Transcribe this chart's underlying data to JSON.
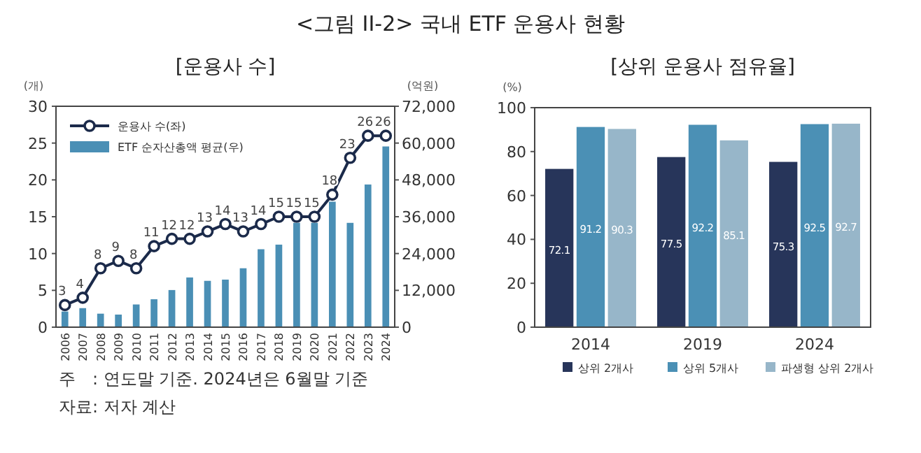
{
  "chart_data": [
    {
      "type": "other",
      "title": "<그림 II-2> 국내 ETF 운용사 현황",
      "annotations": [
        "주　: 연도말 기준. 2024년은 6월말 기준",
        "자료: 저자 계산"
      ]
    },
    {
      "type": "bar",
      "title": "[운용사 수]",
      "ylabel": "(개)",
      "y2label": "(억원)",
      "legend": "top left",
      "categories": [
        "2006",
        "2007",
        "2008",
        "2009",
        "2010",
        "2011",
        "2012",
        "2013",
        "2014",
        "2015",
        "2016",
        "2017",
        "2018",
        "2019",
        "2020",
        "2021",
        "2022",
        "2023",
        "2024"
      ],
      "ylim": [
        0,
        30
      ],
      "yticks": [
        0,
        5,
        10,
        15,
        20,
        25,
        30
      ],
      "y2lim": [
        0,
        72000
      ],
      "y2ticks": [
        0,
        {
          "value": 12000,
          "label": "12,000"
        },
        {
          "value": 24000,
          "label": "24,000"
        },
        {
          "value": 36000,
          "label": "36,000"
        },
        {
          "value": 48000,
          "label": "48,000"
        },
        {
          "value": 60000,
          "label": "60,000"
        },
        {
          "value": 72000,
          "label": "72,000"
        }
      ],
      "series": [
        {
          "name": "운용사 수(좌)",
          "type": "line",
          "marker": "circle",
          "color": "#1b2a4a",
          "values": [
            3,
            4,
            8,
            9,
            8,
            11,
            12,
            12,
            13,
            14,
            13,
            14,
            15,
            15,
            15,
            18,
            23,
            26,
            26
          ],
          "value_labels": [
            "3",
            "4",
            "8",
            "9",
            "8",
            "11",
            "12",
            "12",
            "13",
            "14",
            "13",
            "14",
            "15",
            "15",
            "15",
            "18",
            "23",
            "26",
            "26"
          ]
        },
        {
          "name": "ETF 순자산총액 평균(우)",
          "type": "bar",
          "axis": "y2",
          "color": "#4a8fb5",
          "values": [
            5100,
            6200,
            4400,
            4100,
            7400,
            9100,
            12100,
            16200,
            15100,
            15500,
            19200,
            25400,
            26900,
            34000,
            34000,
            40900,
            34000,
            46500,
            58900
          ]
        }
      ]
    },
    {
      "type": "bar",
      "title": "[상위 운용사 점유율]",
      "ylabel": "(%)",
      "legend": "bottom",
      "data_labels": true,
      "categories": [
        "2014",
        "2019",
        "2024"
      ],
      "ylim": [
        0,
        100
      ],
      "yticks": [
        0,
        20,
        40,
        60,
        80,
        100
      ],
      "series": [
        {
          "name": "상위 2개사",
          "color": "#27355a",
          "values": [
            72.1,
            77.5,
            75.3
          ]
        },
        {
          "name": "상위 5개사",
          "color": "#4b90b5",
          "values": [
            91.2,
            92.2,
            92.5
          ]
        },
        {
          "name": "파생형 상위 2개사",
          "color": "#97b6c9",
          "values": [
            90.3,
            85.1,
            92.7
          ]
        }
      ]
    }
  ]
}
